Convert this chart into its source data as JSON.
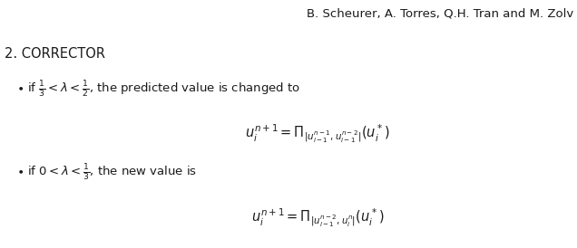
{
  "header": "B. Scheurer, A. Torres, Q.H. Tran and M. Zolv",
  "section": "2. CORRECTOR",
  "bullet1_text": "if $\\frac{1}{3} < \\lambda < \\frac{1}{2}$, the predicted value is changed to",
  "bullet2_text": "if $0 < \\lambda < \\frac{1}{3}$, the new value is",
  "bg_color": "#ffffff",
  "text_color": "#1a1a1a",
  "fontsize_header": 9.5,
  "fontsize_section": 10.5,
  "fontsize_body": 9.5,
  "fontsize_eq": 10.5,
  "fig_width": 6.36,
  "fig_height": 2.74,
  "dpi": 100
}
